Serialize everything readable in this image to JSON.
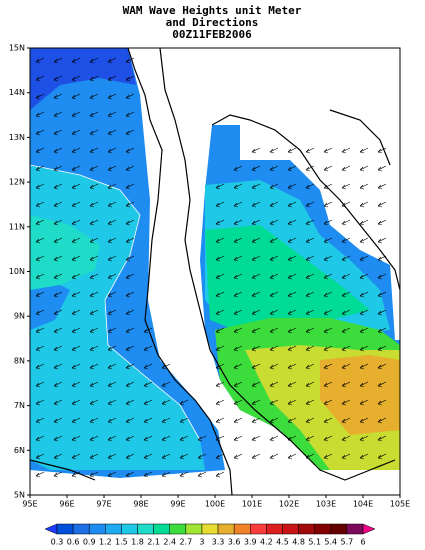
{
  "title": [
    "WAM Wave Heights unit Meter",
    "and Directions",
    "00Z11FEB2006"
  ],
  "lon_labels": [
    "95E",
    "96E",
    "97E",
    "98E",
    "99E",
    "100E",
    "101E",
    "102E",
    "103E",
    "104E",
    "105E"
  ],
  "lat_labels": [
    "5N",
    "6N",
    "7N",
    "8N",
    "9N",
    "10N",
    "11N",
    "12N",
    "13N",
    "14N",
    "15N"
  ],
  "colorbar": {
    "labels": [
      "0.3",
      "0.6",
      "0.9",
      "1.2",
      "1.5",
      "1.8",
      "2.1",
      "2.4",
      "2.7",
      "3",
      "3.3",
      "3.6",
      "3.9",
      "4.2",
      "4.5",
      "4.8",
      "5.1",
      "5.4",
      "5.7",
      "6"
    ],
    "colors": [
      "#1e3cff",
      "#0050dc",
      "#1e6ee6",
      "#1e8cf0",
      "#1eaaf0",
      "#1ec8e6",
      "#1edcc8",
      "#00dc96",
      "#3cdc3c",
      "#a0e632",
      "#e6dc32",
      "#e6af2d",
      "#f08228",
      "#fa3c3c",
      "#dc1e1e",
      "#c81414",
      "#a00a0a",
      "#820000",
      "#640000",
      "#7d0a5a",
      "#f00082"
    ]
  }
}
